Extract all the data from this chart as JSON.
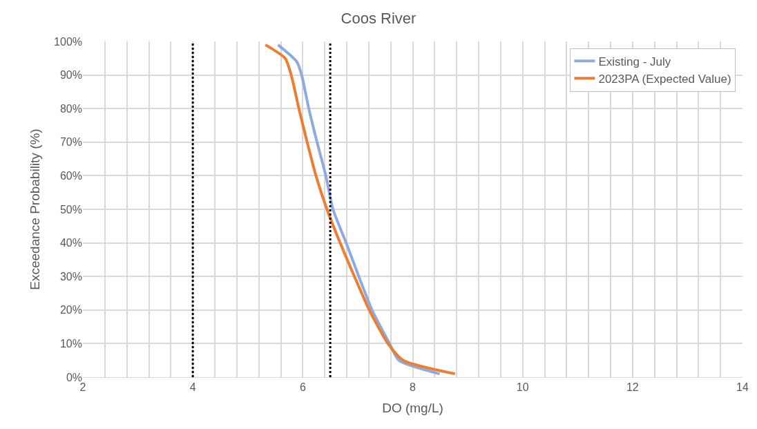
{
  "chart_data": {
    "type": "line",
    "title": "Coos River",
    "xlabel": "DO (mg/L)",
    "ylabel": "Exceedance Probability (%)",
    "series": [
      {
        "name": "Existing - July",
        "color": "#8faadc",
        "x": [
          5.55,
          5.89,
          5.98,
          6.11,
          6.26,
          6.42,
          6.55,
          6.79,
          7.02,
          7.26,
          7.58,
          7.75,
          8.49
        ],
        "values": [
          99,
          94,
          90,
          80,
          70,
          60,
          50,
          40,
          30,
          20,
          10,
          5,
          1
        ]
      },
      {
        "name": "2023PA (Expected Value)",
        "color": "#ed7d31",
        "x": [
          5.32,
          5.68,
          5.79,
          5.93,
          6.08,
          6.24,
          6.44,
          6.68,
          6.94,
          7.21,
          7.55,
          7.83,
          8.77
        ],
        "values": [
          99,
          95,
          90,
          80,
          70,
          60,
          50,
          40,
          30,
          20,
          10,
          5,
          1
        ]
      }
    ],
    "ref_lines": [
      {
        "axis": "x",
        "value": 4,
        "color": "#000000",
        "line_style": "dotted"
      },
      {
        "axis": "x",
        "value": 6.5,
        "color": "#000000",
        "line_style": "dotted"
      }
    ],
    "xlim": [
      2,
      14
    ],
    "xticks": [
      2,
      {
        "value": 2.4,
        "label": null
      },
      {
        "value": 2.8,
        "label": null
      },
      {
        "value": 3.2,
        "label": null
      },
      {
        "value": 3.6,
        "label": null
      },
      4,
      {
        "value": 4.4,
        "label": null
      },
      {
        "value": 4.8,
        "label": null
      },
      {
        "value": 5.2,
        "label": null
      },
      {
        "value": 5.6,
        "label": null
      },
      6,
      {
        "value": 6.4,
        "label": null
      },
      {
        "value": 6.8,
        "label": null
      },
      {
        "value": 7.2,
        "label": null
      },
      {
        "value": 7.6,
        "label": null
      },
      8,
      {
        "value": 8.4,
        "label": null
      },
      {
        "value": 8.8,
        "label": null
      },
      {
        "value": 9.2,
        "label": null
      },
      {
        "value": 9.6,
        "label": null
      },
      10,
      {
        "value": 10.4,
        "label": null
      },
      {
        "value": 10.8,
        "label": null
      },
      {
        "value": 11.2,
        "label": null
      },
      {
        "value": 11.6,
        "label": null
      },
      12,
      {
        "value": 12.4,
        "label": null
      },
      {
        "value": 12.8,
        "label": null
      },
      {
        "value": 13.2,
        "label": null
      },
      {
        "value": 13.6,
        "label": null
      },
      14
    ],
    "ylim": [
      0,
      100
    ],
    "yticks": [
      {
        "value": 0,
        "label": "0%"
      },
      {
        "value": 10,
        "label": "10%"
      },
      {
        "value": 20,
        "label": "20%"
      },
      {
        "value": 30,
        "label": "30%"
      },
      {
        "value": 40,
        "label": "40%"
      },
      {
        "value": 50,
        "label": "50%"
      },
      {
        "value": 60,
        "label": "60%"
      },
      {
        "value": 70,
        "label": "70%"
      },
      {
        "value": 80,
        "label": "80%"
      },
      {
        "value": 90,
        "label": "90%"
      },
      {
        "value": 100,
        "label": "100%"
      }
    ],
    "grid": true,
    "legend": "top right",
    "marker": "none",
    "line_style": "solid"
  }
}
